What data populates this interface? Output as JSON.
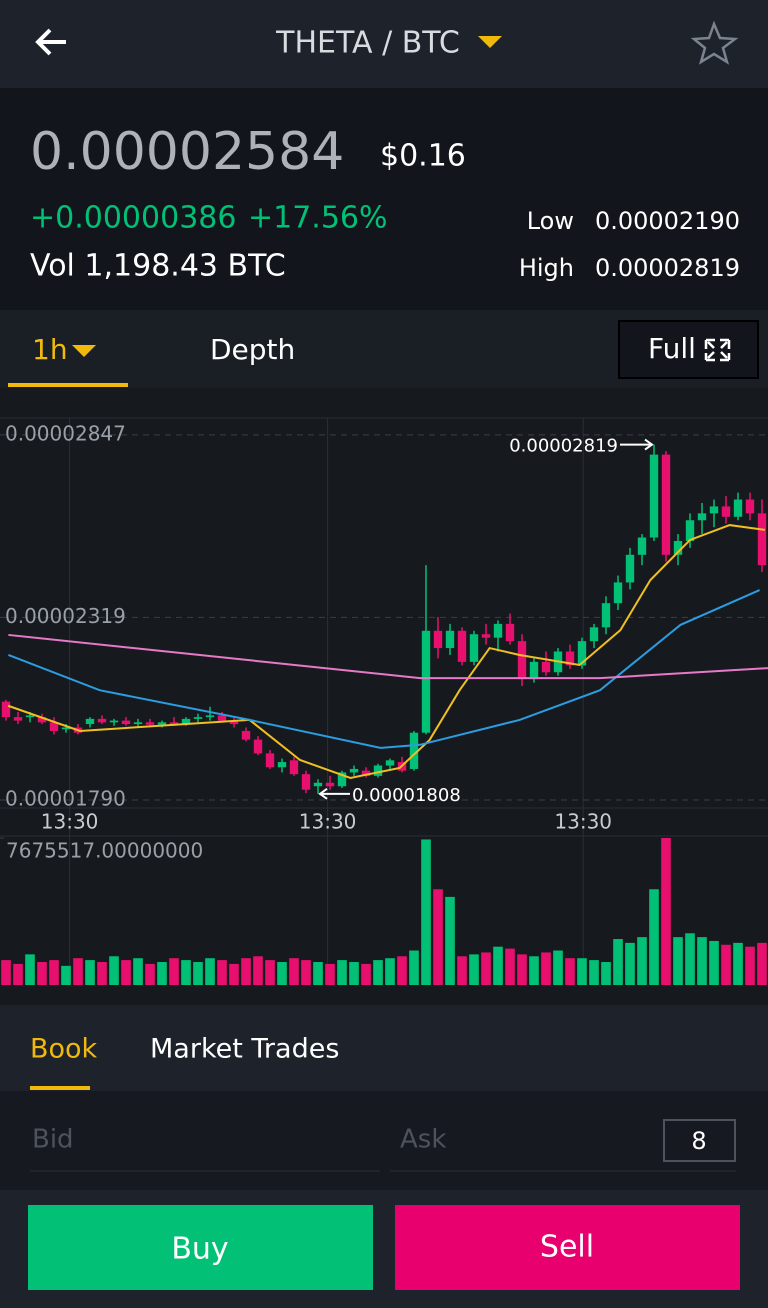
{
  "header": {
    "title": "THETA / BTC"
  },
  "ticker": {
    "price": "0.00002584",
    "usd": "$0.16",
    "change": "+0.00000386",
    "change_pct": "+17.56%",
    "volume": "Vol 1,198.43 BTC",
    "low_label": "Low",
    "low": "0.00002190",
    "high_label": "High",
    "high": "0.00002819"
  },
  "tabs": {
    "interval": "1h",
    "depth": "Depth",
    "full": "Full"
  },
  "chart_data": {
    "type": "candlestick",
    "colors": {
      "up": "#02c076",
      "down": "#e8106e"
    },
    "x": [
      0,
      1,
      2,
      3,
      4,
      5,
      6,
      7,
      8,
      9,
      10,
      11,
      12,
      13,
      14,
      15,
      16,
      17,
      18,
      19,
      20,
      21,
      22,
      23,
      24,
      25,
      26,
      27,
      28,
      29,
      30,
      31,
      32,
      33,
      34,
      35,
      36,
      37,
      38,
      39,
      40,
      41,
      42,
      43,
      44,
      45,
      46,
      47,
      48,
      49,
      50,
      51,
      52,
      53,
      54,
      55,
      56,
      57,
      58,
      59,
      60,
      61,
      62,
      63
    ],
    "open": [
      2.075e-05,
      2.03e-05,
      2.03e-05,
      2.03e-05,
      2.015e-05,
      1.995e-05,
      2e-05,
      2.01e-05,
      2.025e-05,
      2.015e-05,
      2.02e-05,
      2.01e-05,
      2.015e-05,
      2.008e-05,
      2.015e-05,
      2.01e-05,
      2.025e-05,
      2.03e-05,
      2.035e-05,
      2.02e-05,
      1.99e-05,
      1.965e-05,
      1.925e-05,
      1.885e-05,
      1.905e-05,
      1.865e-05,
      1.83e-05,
      1.84e-05,
      1.83e-05,
      1.87e-05,
      1.875e-05,
      1.86e-05,
      1.89e-05,
      1.9e-05,
      1.88e-05,
      1.985e-05,
      2.28e-05,
      2.23e-05,
      2.28e-05,
      2.19e-05,
      2.27e-05,
      2.26e-05,
      2.3e-05,
      2.25e-05,
      2.14e-05,
      2.19e-05,
      2.16e-05,
      2.22e-05,
      2.18e-05,
      2.25e-05,
      2.29e-05,
      2.36e-05,
      2.42e-05,
      2.5e-05,
      2.55e-05,
      2.79e-05,
      2.5e-05,
      2.54e-05,
      2.6e-05,
      2.62e-05,
      2.64e-05,
      2.61e-05,
      2.66e-05,
      2.62e-05
    ],
    "high": [
      2.08e-05,
      2.045e-05,
      2.045e-05,
      2.04e-05,
      2.03e-05,
      2.01e-05,
      2.01e-05,
      2.03e-05,
      2.035e-05,
      2.025e-05,
      2.03e-05,
      2.025e-05,
      2.025e-05,
      2.02e-05,
      2.03e-05,
      2.03e-05,
      2.04e-05,
      2.06e-05,
      2.045e-05,
      2.03e-05,
      2e-05,
      1.975e-05,
      1.935e-05,
      1.91e-05,
      1.915e-05,
      1.875e-05,
      1.85e-05,
      1.86e-05,
      1.875e-05,
      1.89e-05,
      1.885e-05,
      1.895e-05,
      1.91e-05,
      1.915e-05,
      1.99e-05,
      2.47e-05,
      2.32e-05,
      2.3e-05,
      2.29e-05,
      2.28e-05,
      2.3e-05,
      2.31e-05,
      2.33e-05,
      2.27e-05,
      2.2e-05,
      2.22e-05,
      2.23e-05,
      2.24e-05,
      2.26e-05,
      2.3e-05,
      2.38e-05,
      2.44e-05,
      2.52e-05,
      2.56e-05,
      2.819e-05,
      2.8e-05,
      2.56e-05,
      2.62e-05,
      2.65e-05,
      2.66e-05,
      2.67e-05,
      2.68e-05,
      2.68e-05,
      2.66e-05
    ],
    "low": [
      2.02e-05,
      2.01e-05,
      2.015e-05,
      2.01e-05,
      1.98e-05,
      1.985e-05,
      1.98e-05,
      2e-05,
      2.01e-05,
      2.005e-05,
      2.005e-05,
      2e-05,
      2.005e-05,
      2e-05,
      2.005e-05,
      2.005e-05,
      2.015e-05,
      2.02e-05,
      2.015e-05,
      2e-05,
      1.96e-05,
      1.92e-05,
      1.88e-05,
      1.87e-05,
      1.86e-05,
      1.81e-05,
      1.808e-05,
      1.82e-05,
      1.825e-05,
      1.86e-05,
      1.855e-05,
      1.855e-05,
      1.88e-05,
      1.87e-05,
      1.875e-05,
      1.98e-05,
      2.2e-05,
      2.21e-05,
      2.18e-05,
      2.18e-05,
      2.24e-05,
      2.22e-05,
      2.24e-05,
      2.12e-05,
      2.13e-05,
      2.15e-05,
      2.15e-05,
      2.17e-05,
      2.17e-05,
      2.23e-05,
      2.27e-05,
      2.34e-05,
      2.4e-05,
      2.47e-05,
      2.54e-05,
      2.48e-05,
      2.47e-05,
      2.52e-05,
      2.56e-05,
      2.58e-05,
      2.59e-05,
      2.6e-05,
      2.6e-05,
      2.45e-05
    ],
    "close": [
      2.03e-05,
      2.02e-05,
      2.035e-05,
      2.015e-05,
      1.99e-05,
      2e-05,
      1.985e-05,
      2.025e-05,
      2.015e-05,
      2.02e-05,
      2.01e-05,
      2.015e-05,
      2.008e-05,
      2.015e-05,
      2.01e-05,
      2.025e-05,
      2.03e-05,
      2.035e-05,
      2.02e-05,
      2.01e-05,
      1.965e-05,
      1.925e-05,
      1.885e-05,
      1.9e-05,
      1.865e-05,
      1.82e-05,
      1.84e-05,
      1.83e-05,
      1.87e-05,
      1.88e-05,
      1.86e-05,
      1.89e-05,
      1.905e-05,
      1.875e-05,
      1.985e-05,
      2.28e-05,
      2.23e-05,
      2.28e-05,
      2.19e-05,
      2.27e-05,
      2.26e-05,
      2.3e-05,
      2.25e-05,
      2.14e-05,
      2.19e-05,
      2.16e-05,
      2.22e-05,
      2.18e-05,
      2.25e-05,
      2.29e-05,
      2.36e-05,
      2.42e-05,
      2.5e-05,
      2.55e-05,
      2.79e-05,
      2.5e-05,
      2.54e-05,
      2.6e-05,
      2.62e-05,
      2.64e-05,
      2.61e-05,
      2.66e-05,
      2.62e-05,
      2.47e-05
    ],
    "xlim": [
      -0.5,
      63.5
    ],
    "xticks": [
      {
        "value": 5.3,
        "label": "13:30"
      },
      {
        "value": 26.8,
        "label": "13:30"
      },
      {
        "value": 48.1,
        "label": "13:30"
      }
    ],
    "ylim": [
      1.767e-05,
      2.896e-05
    ],
    "yticks": [
      2.847e-05,
      2.319e-05,
      {
        "value": 1.79e-05,
        "label": "0.00001790"
      }
    ],
    "grid": true,
    "high_marker": 2.819e-05,
    "low_marker": 1.808e-05,
    "lines": [
      {
        "color": "#f0c020",
        "x": [
          0.17,
          6.17,
          20.3,
          24.5,
          28.7,
          32.8,
          35.3,
          37.8,
          40.3,
          42.8,
          47.8,
          51.2,
          53.7,
          57,
          60.3,
          63.25
        ],
        "values": [
          2.063e-05,
          1.99e-05,
          2.022e-05,
          1.906e-05,
          1.854e-05,
          1.883e-05,
          1.964e-05,
          2.108e-05,
          2.23e-05,
          2.21e-05,
          2.181e-05,
          2.282e-05,
          2.427e-05,
          2.543e-05,
          2.586e-05,
          2.572e-05
        ]
      },
      {
        "color": "#2b9de0",
        "x": [
          0.2,
          7.8,
          20.3,
          31.2,
          34.5,
          42.8,
          49.5,
          56.2,
          62.8
        ],
        "values": [
          2.21e-05,
          2.108e-05,
          2.022e-05,
          1.941e-05,
          1.95e-05,
          2.022e-05,
          2.108e-05,
          2.297e-05,
          2.398e-05
        ]
      },
      {
        "color": "#e879c8",
        "x": [
          0.2,
          34.5,
          49.5,
          63.5
        ],
        "values": [
          2.268e-05,
          2.143e-05,
          2.143e-05,
          2.172e-05
        ]
      }
    ],
    "volume": {
      "ylim": [
        0,
        7675517
      ],
      "yticks": [
        {
          "value": 7675517,
          "label": "7675517.00000000"
        }
      ],
      "values": [
        1300000,
        1100000,
        1600000,
        1200000,
        1300000,
        1000000,
        1400000,
        1300000,
        1200000,
        1500000,
        1300000,
        1400000,
        1100000,
        1200000,
        1400000,
        1300000,
        1200000,
        1400000,
        1300000,
        1100000,
        1400000,
        1500000,
        1300000,
        1200000,
        1400000,
        1300000,
        1200000,
        1100000,
        1300000,
        1200000,
        1100000,
        1300000,
        1400000,
        1500000,
        1800000,
        7600000,
        5000000,
        4600000,
        1500000,
        1600000,
        1700000,
        2000000,
        1900000,
        1600000,
        1500000,
        1700000,
        1800000,
        1400000,
        1400000,
        1300000,
        1200000,
        2400000,
        2200000,
        2500000,
        5000000,
        7675517,
        2500000,
        2700000,
        2500000,
        2300000,
        2100000,
        2200000,
        2000000,
        2200000
      ]
    }
  },
  "book": {
    "tab_book": "Book",
    "tab_trades": "Market Trades",
    "bid": "Bid",
    "ask": "Ask",
    "depth": "8"
  },
  "actions": {
    "buy": "Buy",
    "sell": "Sell"
  }
}
